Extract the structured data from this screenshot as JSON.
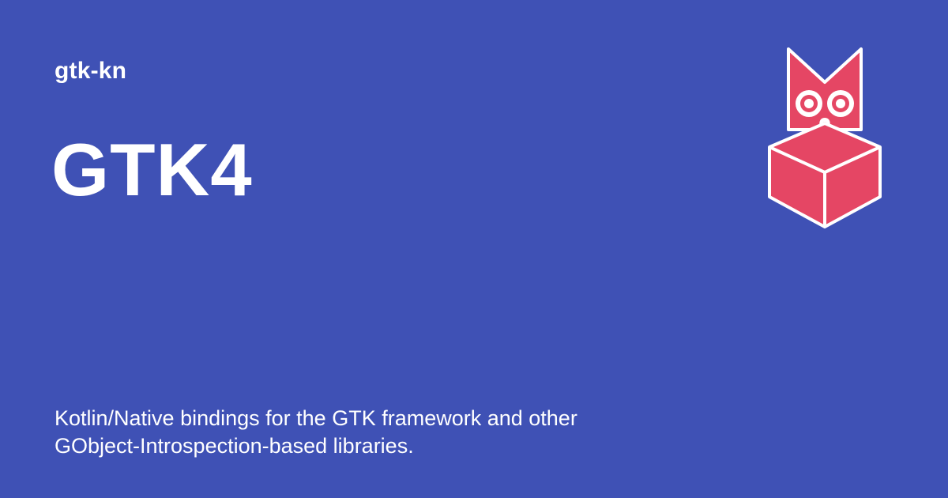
{
  "site": {
    "name": "gtk-kn"
  },
  "page": {
    "title": "GTK4",
    "description": "Kotlin/Native bindings for the GTK framework and other GObject-Introspection-based libraries."
  },
  "logo": {
    "icon": "owl-box-logo-icon",
    "colors": {
      "body": "#e54664",
      "outline": "#ffffff",
      "background": "#3f51b5"
    }
  }
}
